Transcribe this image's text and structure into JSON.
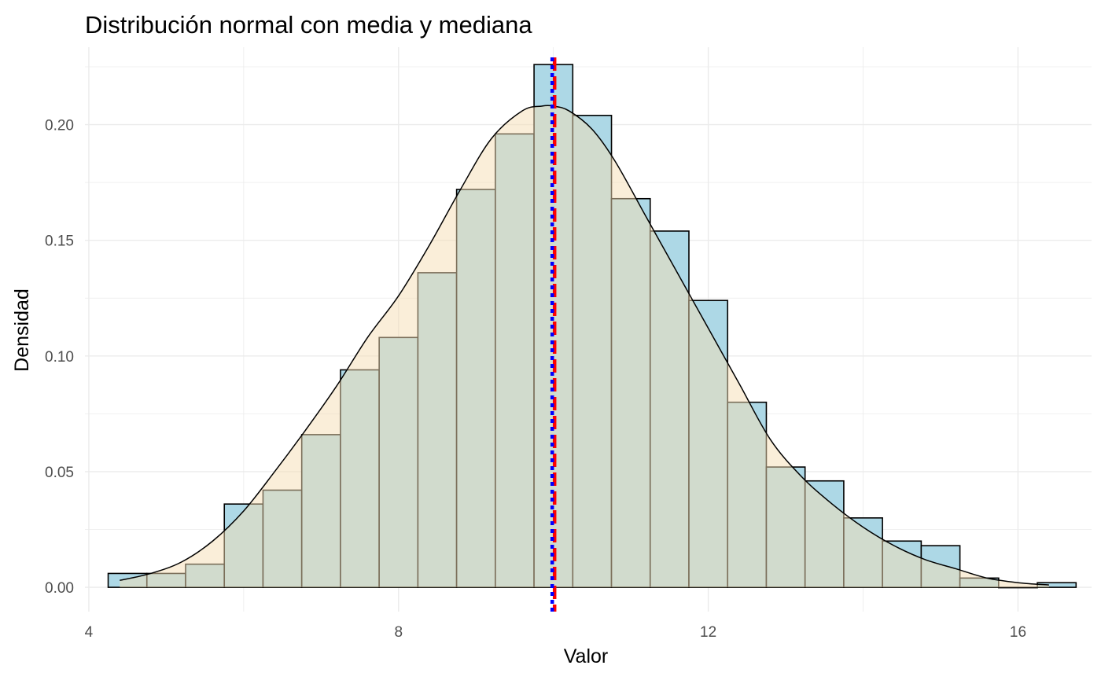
{
  "chart_data": {
    "type": "bar",
    "title": "Distribución normal con media y mediana",
    "xlabel": "Valor",
    "ylabel": "Densidad",
    "xlim": [
      3.95,
      16.95
    ],
    "ylim": [
      -0.0105,
      0.2335
    ],
    "x_ticks": [
      4,
      8,
      12,
      16
    ],
    "x_tick_labels": [
      "4",
      "8",
      "12",
      "16"
    ],
    "y_ticks": [
      0,
      0.05,
      0.1,
      0.15,
      0.2
    ],
    "y_tick_labels": [
      "0.00",
      "0.05",
      "0.10",
      "0.15",
      "0.20"
    ],
    "grid": true,
    "bin_width": 0.5,
    "histogram": {
      "bin_starts": [
        4.25,
        4.75,
        5.25,
        5.75,
        6.25,
        6.75,
        7.25,
        7.75,
        8.25,
        8.75,
        9.25,
        9.75,
        10.25,
        10.75,
        11.25,
        11.75,
        12.25,
        12.75,
        13.25,
        13.75,
        14.25,
        14.75,
        15.25,
        15.75,
        16.25
      ],
      "values": [
        0.006,
        0.006,
        0.01,
        0.036,
        0.042,
        0.066,
        0.094,
        0.108,
        0.136,
        0.172,
        0.196,
        0.226,
        0.204,
        0.168,
        0.154,
        0.124,
        0.08,
        0.052,
        0.046,
        0.03,
        0.02,
        0.018,
        0.004,
        0.0,
        0.002
      ],
      "fill": "#add8e6",
      "stroke": "#000000"
    },
    "density": {
      "x": [
        4.4,
        4.8,
        5.2,
        5.6,
        6.0,
        6.4,
        6.8,
        7.2,
        7.6,
        8.0,
        8.4,
        8.8,
        9.2,
        9.6,
        9.85,
        10.0,
        10.2,
        10.5,
        10.8,
        11.2,
        11.6,
        12.0,
        12.4,
        12.8,
        13.2,
        13.6,
        14.0,
        14.4,
        14.8,
        15.2,
        15.6,
        16.0,
        16.4
      ],
      "y": [
        0.003,
        0.006,
        0.011,
        0.02,
        0.033,
        0.05,
        0.068,
        0.087,
        0.108,
        0.126,
        0.148,
        0.172,
        0.194,
        0.206,
        0.208,
        0.208,
        0.206,
        0.198,
        0.184,
        0.16,
        0.136,
        0.112,
        0.088,
        0.064,
        0.048,
        0.036,
        0.026,
        0.018,
        0.012,
        0.008,
        0.004,
        0.002,
        0.001
      ],
      "fill": "#f5deb3",
      "fill_opacity": 0.5,
      "stroke": "#000000"
    },
    "reference_lines": [
      {
        "x": 10.0,
        "color": "#ff0000",
        "style": "dashed"
      },
      {
        "x": 10.0,
        "color": "#0000ff",
        "style": "dotted"
      }
    ]
  }
}
